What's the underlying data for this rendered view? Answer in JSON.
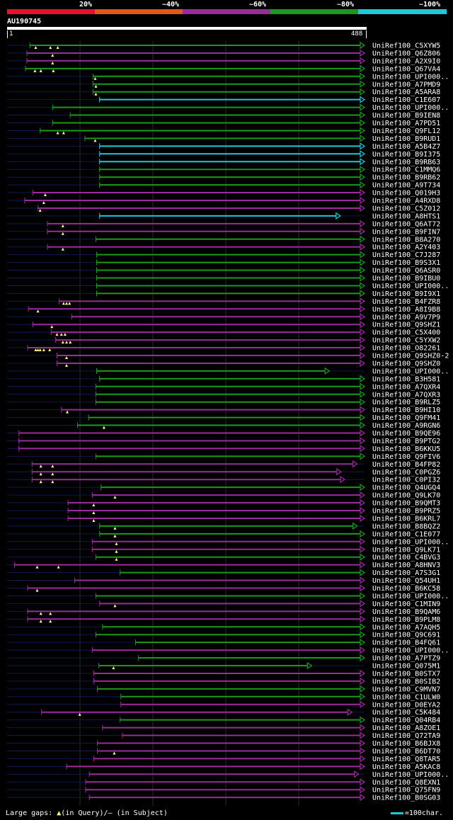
{
  "legend": {
    "labels": [
      "20%",
      "~40%",
      "~60%",
      "~80%",
      "~100%"
    ],
    "colors": [
      "#e8102a",
      "#e05a16",
      "#9a2b9a",
      "#1a9a1a",
      "#1ec8d8"
    ]
  },
  "query": {
    "id": "AU190745",
    "start": "1",
    "end": "488"
  },
  "footer": {
    "gaps_label": "Large gaps:",
    "query_marker": "(in Query)/",
    "subject_marker": "(in Subject)",
    "scale_label": "=100char."
  },
  "chart_data": {
    "type": "alignment",
    "query_length": 488,
    "hits": [
      {
        "name": "UniRef100_C5XYW5",
        "color": "green",
        "start": 32,
        "end": 488,
        "marks": [
          40,
          60,
          70
        ]
      },
      {
        "name": "UniRef100_Q6Z806",
        "color": "purple",
        "start": 28,
        "end": 488,
        "marks": [
          63
        ]
      },
      {
        "name": "UniRef100_A2X9I0",
        "color": "purple",
        "start": 28,
        "end": 488,
        "marks": [
          63
        ]
      },
      {
        "name": "UniRef100_Q67VA4",
        "color": "green",
        "start": 26,
        "end": 488,
        "marks": [
          39,
          47,
          64
        ]
      },
      {
        "name": "UniRef100_UPI000..",
        "color": "green",
        "start": 118,
        "end": 488,
        "marks": [
          121
        ]
      },
      {
        "name": "UniRef100_A7PMD9",
        "color": "green",
        "start": 118,
        "end": 488,
        "marks": [
          122
        ]
      },
      {
        "name": "UniRef100_A5ARA8",
        "color": "green",
        "start": 118,
        "end": 488,
        "marks": [
          122
        ]
      },
      {
        "name": "UniRef100_C1E607",
        "color": "cyan",
        "start": 127,
        "end": 488,
        "marks": []
      },
      {
        "name": "UniRef100_UPI000..",
        "color": "green",
        "start": 63,
        "end": 488,
        "marks": []
      },
      {
        "name": "UniRef100_B9IEN8",
        "color": "green",
        "start": 87,
        "end": 488,
        "marks": []
      },
      {
        "name": "UniRef100_A7PD51",
        "color": "green",
        "start": 63,
        "end": 488,
        "marks": []
      },
      {
        "name": "UniRef100_Q9FL12",
        "color": "green",
        "start": 46,
        "end": 488,
        "marks": [
          70,
          78
        ]
      },
      {
        "name": "UniRef100_B9RUD1",
        "color": "green",
        "start": 107,
        "end": 488,
        "marks": [
          121
        ]
      },
      {
        "name": "UniRef100_A5B4Z7",
        "color": "cyan",
        "start": 127,
        "end": 488,
        "marks": []
      },
      {
        "name": "UniRef100_B9I375",
        "color": "cyan",
        "start": 127,
        "end": 488,
        "marks": []
      },
      {
        "name": "UniRef100_B9RB63",
        "color": "cyan",
        "start": 127,
        "end": 488,
        "marks": []
      },
      {
        "name": "UniRef100_C1MMQ6",
        "color": "green",
        "start": 127,
        "end": 488,
        "marks": []
      },
      {
        "name": "UniRef100_B9RB62",
        "color": "green",
        "start": 127,
        "end": 488,
        "marks": []
      },
      {
        "name": "UniRef100_A9T734",
        "color": "green",
        "start": 127,
        "end": 488,
        "marks": []
      },
      {
        "name": "UniRef100_Q019H3",
        "color": "purple",
        "start": 36,
        "end": 488,
        "marks": [
          53
        ]
      },
      {
        "name": "UniRef100_A4RXD8",
        "color": "purple",
        "start": 25,
        "end": 488,
        "marks": [
          51
        ]
      },
      {
        "name": "UniRef100_C5Z012",
        "color": "purple",
        "start": 43,
        "end": 488,
        "marks": [
          46
        ]
      },
      {
        "name": "UniRef100_A8HTS1",
        "color": "cyan",
        "start": 127,
        "end": 455,
        "marks": []
      },
      {
        "name": "UniRef100_Q6AT72",
        "color": "purple",
        "start": 56,
        "end": 488,
        "marks": [
          77
        ]
      },
      {
        "name": "UniRef100_B9FIN7",
        "color": "purple",
        "start": 56,
        "end": 488,
        "marks": [
          77
        ]
      },
      {
        "name": "UniRef100_B8A270",
        "color": "green",
        "start": 122,
        "end": 488,
        "marks": []
      },
      {
        "name": "UniRef100_A2Y403",
        "color": "purple",
        "start": 56,
        "end": 488,
        "marks": [
          77
        ]
      },
      {
        "name": "UniRef100_C7J287",
        "color": "green",
        "start": 123,
        "end": 488,
        "marks": []
      },
      {
        "name": "UniRef100_B9S3X1",
        "color": "green",
        "start": 123,
        "end": 488,
        "marks": []
      },
      {
        "name": "UniRef100_Q6ASR0",
        "color": "green",
        "start": 123,
        "end": 488,
        "marks": []
      },
      {
        "name": "UniRef100_B9IBU0",
        "color": "green",
        "start": 123,
        "end": 488,
        "marks": []
      },
      {
        "name": "UniRef100_UPI000..",
        "color": "green",
        "start": 123,
        "end": 488,
        "marks": []
      },
      {
        "name": "UniRef100_B9I9X1",
        "color": "green",
        "start": 123,
        "end": 488,
        "marks": []
      },
      {
        "name": "UniRef100_B4FZR8",
        "color": "purple",
        "start": 72,
        "end": 488,
        "marks": [
          78,
          82,
          86
        ]
      },
      {
        "name": "UniRef100_A8I9B8",
        "color": "purple",
        "start": 30,
        "end": 488,
        "marks": [
          43
        ]
      },
      {
        "name": "UniRef100_A9V7P9",
        "color": "purple",
        "start": 89,
        "end": 488,
        "marks": []
      },
      {
        "name": "UniRef100_Q9SHZ1",
        "color": "purple",
        "start": 36,
        "end": 488,
        "marks": [
          62
        ]
      },
      {
        "name": "UniRef100_C5X400",
        "color": "purple",
        "start": 61,
        "end": 488,
        "marks": [
          69,
          75,
          80
        ]
      },
      {
        "name": "UniRef100_C5YXW2",
        "color": "purple",
        "start": 67,
        "end": 488,
        "marks": [
          77,
          82,
          87
        ]
      },
      {
        "name": "UniRef100_O82261",
        "color": "purple",
        "start": 29,
        "end": 488,
        "marks": [
          40,
          43,
          46,
          51,
          59
        ]
      },
      {
        "name": "UniRef100_Q9SHZ0-2",
        "color": "purple",
        "start": 69,
        "end": 488,
        "marks": [
          82
        ]
      },
      {
        "name": "UniRef100_Q9SHZ0",
        "color": "purple",
        "start": 69,
        "end": 488,
        "marks": [
          82
        ]
      },
      {
        "name": "UniRef100_UPI000..",
        "color": "green",
        "start": 123,
        "end": 440,
        "marks": []
      },
      {
        "name": "UniRef100_B3H581",
        "color": "green",
        "start": 127,
        "end": 488,
        "marks": []
      },
      {
        "name": "UniRef100_A7QXR4",
        "color": "green",
        "start": 122,
        "end": 488,
        "marks": []
      },
      {
        "name": "UniRef100_A7QXR3",
        "color": "green",
        "start": 122,
        "end": 488,
        "marks": []
      },
      {
        "name": "UniRef100_B9RLZ5",
        "color": "green",
        "start": 122,
        "end": 488,
        "marks": []
      },
      {
        "name": "UniRef100_B9HI10",
        "color": "purple",
        "start": 75,
        "end": 488,
        "marks": [
          83
        ]
      },
      {
        "name": "UniRef100_Q9FM41",
        "color": "green",
        "start": 112,
        "end": 488,
        "marks": []
      },
      {
        "name": "UniRef100_A9RGN6",
        "color": "green",
        "start": 97,
        "end": 488,
        "marks": [
          133
        ]
      },
      {
        "name": "UniRef100_B9QE96",
        "color": "purple",
        "start": 17,
        "end": 488,
        "marks": []
      },
      {
        "name": "UniRef100_B9PTG2",
        "color": "purple",
        "start": 17,
        "end": 488,
        "marks": []
      },
      {
        "name": "UniRef100_B6KKU5",
        "color": "purple",
        "start": 17,
        "end": 488,
        "marks": []
      },
      {
        "name": "UniRef100_Q9FIV6",
        "color": "green",
        "start": 122,
        "end": 488,
        "marks": []
      },
      {
        "name": "UniRef100_B4FP82",
        "color": "purple",
        "start": 35,
        "end": 478,
        "marks": [
          47,
          63
        ]
      },
      {
        "name": "UniRef100_C0PGZ6",
        "color": "purple",
        "start": 35,
        "end": 456,
        "marks": [
          47,
          63
        ]
      },
      {
        "name": "UniRef100_C0PI32",
        "color": "purple",
        "start": 35,
        "end": 461,
        "marks": [
          47,
          63
        ]
      },
      {
        "name": "UniRef100_Q4UGQ4",
        "color": "green",
        "start": 129,
        "end": 488,
        "marks": []
      },
      {
        "name": "UniRef100_Q9LK70",
        "color": "purple",
        "start": 117,
        "end": 488,
        "marks": [
          148
        ]
      },
      {
        "name": "UniRef100_B9QMT3",
        "color": "purple",
        "start": 84,
        "end": 488,
        "marks": [
          119
        ]
      },
      {
        "name": "UniRef100_B9PRZ5",
        "color": "purple",
        "start": 84,
        "end": 488,
        "marks": [
          119
        ]
      },
      {
        "name": "UniRef100_B6KRL7",
        "color": "purple",
        "start": 84,
        "end": 488,
        "marks": [
          119
        ]
      },
      {
        "name": "UniRef100_B8BQZ2",
        "color": "green",
        "start": 127,
        "end": 478,
        "marks": [
          148
        ]
      },
      {
        "name": "UniRef100_C1E077",
        "color": "green",
        "start": 127,
        "end": 488,
        "marks": [
          148
        ]
      },
      {
        "name": "UniRef100_UPI000..",
        "color": "purple",
        "start": 117,
        "end": 488,
        "marks": [
          150
        ]
      },
      {
        "name": "UniRef100_Q9LK71",
        "color": "purple",
        "start": 117,
        "end": 488,
        "marks": [
          150
        ]
      },
      {
        "name": "UniRef100_C4BVG3",
        "color": "green",
        "start": 122,
        "end": 488,
        "marks": [
          150
        ]
      },
      {
        "name": "UniRef100_A8HNV3",
        "color": "purple",
        "start": 11,
        "end": 488,
        "marks": [
          42,
          71
        ]
      },
      {
        "name": "UniRef100_A7S3G1",
        "color": "green",
        "start": 155,
        "end": 488,
        "marks": []
      },
      {
        "name": "UniRef100_Q54UH1",
        "color": "purple",
        "start": 93,
        "end": 488,
        "marks": []
      },
      {
        "name": "UniRef100_B6KC58",
        "color": "purple",
        "start": 29,
        "end": 488,
        "marks": [
          42
        ]
      },
      {
        "name": "UniRef100_UPI000..",
        "color": "green",
        "start": 122,
        "end": 488,
        "marks": []
      },
      {
        "name": "UniRef100_C1MIN9",
        "color": "purple",
        "start": 127,
        "end": 488,
        "marks": [
          148
        ]
      },
      {
        "name": "UniRef100_B9QAM6",
        "color": "purple",
        "start": 29,
        "end": 488,
        "marks": [
          47,
          60
        ]
      },
      {
        "name": "UniRef100_B9PLM8",
        "color": "purple",
        "start": 29,
        "end": 488,
        "marks": [
          47,
          60
        ]
      },
      {
        "name": "UniRef100_A7AQH5",
        "color": "green",
        "start": 131,
        "end": 488,
        "marks": []
      },
      {
        "name": "UniRef100_Q9C691",
        "color": "green",
        "start": 122,
        "end": 488,
        "marks": []
      },
      {
        "name": "UniRef100_B4FQ61",
        "color": "green",
        "start": 176,
        "end": 488,
        "marks": []
      },
      {
        "name": "UniRef100_UPI000..",
        "color": "purple",
        "start": 117,
        "end": 488,
        "marks": []
      },
      {
        "name": "UniRef100_A7PTZ9",
        "color": "green",
        "start": 180,
        "end": 488,
        "marks": []
      },
      {
        "name": "UniRef100_Q075M1",
        "color": "green",
        "start": 126,
        "end": 416,
        "marks": [
          146
        ]
      },
      {
        "name": "UniRef100_B0STX7",
        "color": "purple",
        "start": 119,
        "end": 488,
        "marks": []
      },
      {
        "name": "UniRef100_B0SIB2",
        "color": "purple",
        "start": 119,
        "end": 488,
        "marks": []
      },
      {
        "name": "UniRef100_C9MVN7",
        "color": "green",
        "start": 124,
        "end": 488,
        "marks": []
      },
      {
        "name": "UniRef100_C1ULW0",
        "color": "green",
        "start": 156,
        "end": 488,
        "marks": []
      },
      {
        "name": "UniRef100_D0EYA2",
        "color": "purple",
        "start": 156,
        "end": 488,
        "marks": []
      },
      {
        "name": "UniRef100_C5K484",
        "color": "purple",
        "start": 48,
        "end": 471,
        "marks": [
          100
        ]
      },
      {
        "name": "UniRef100_Q04RB4",
        "color": "green",
        "start": 155,
        "end": 488,
        "marks": []
      },
      {
        "name": "UniRef100_A8ZOE1",
        "color": "purple",
        "start": 131,
        "end": 488,
        "marks": []
      },
      {
        "name": "UniRef100_Q72TA9",
        "color": "purple",
        "start": 158,
        "end": 488,
        "marks": []
      },
      {
        "name": "UniRef100_B6BJX8",
        "color": "purple",
        "start": 124,
        "end": 488,
        "marks": []
      },
      {
        "name": "UniRef100_B6DT70",
        "color": "purple",
        "start": 124,
        "end": 488,
        "marks": [
          147
        ]
      },
      {
        "name": "UniRef100_Q8TAR5",
        "color": "purple",
        "start": 119,
        "end": 488,
        "marks": []
      },
      {
        "name": "UniRef100_A5KAC8",
        "color": "purple",
        "start": 82,
        "end": 488,
        "marks": []
      },
      {
        "name": "UniRef100_UPI000..",
        "color": "purple",
        "start": 113,
        "end": 480,
        "marks": []
      },
      {
        "name": "UniRef100_Q8EXN1",
        "color": "purple",
        "start": 108,
        "end": 488,
        "marks": []
      },
      {
        "name": "UniRef100_Q75FN9",
        "color": "purple",
        "start": 108,
        "end": 488,
        "marks": []
      },
      {
        "name": "UniRef100_B0SG03",
        "color": "purple",
        "start": 113,
        "end": 488,
        "marks": []
      }
    ]
  }
}
